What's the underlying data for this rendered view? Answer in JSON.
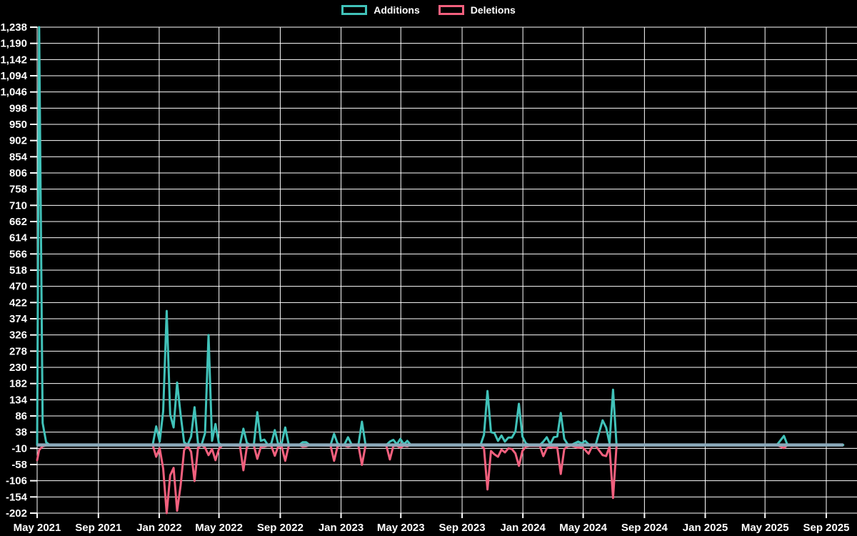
{
  "legend": {
    "items": [
      {
        "label": "Additions",
        "color": "#41c2b9"
      },
      {
        "label": "Deletions",
        "color": "#f2607e"
      }
    ]
  },
  "chart_data": {
    "type": "line",
    "title": "",
    "legend_position": "top",
    "background_color": "#000000",
    "grid": true,
    "grid_color": "#ffffff",
    "text_color": "#ffffff",
    "zero_baseline_color": "#8ba9ba",
    "ylim": [
      -202,
      1238
    ],
    "y_tick_step": 48,
    "y_ticks": [
      1238,
      1190,
      1142,
      1094,
      1046,
      998,
      950,
      902,
      854,
      806,
      758,
      710,
      662,
      614,
      566,
      518,
      470,
      422,
      374,
      326,
      278,
      230,
      182,
      134,
      86,
      38,
      -10,
      -58,
      -106,
      -154,
      -202
    ],
    "x_ticks": [
      {
        "label": "May 2021",
        "date": "2021-05-01"
      },
      {
        "label": "Sep 2021",
        "date": "2021-09-01"
      },
      {
        "label": "Jan 2022",
        "date": "2022-01-01"
      },
      {
        "label": "May 2022",
        "date": "2022-05-01"
      },
      {
        "label": "Sep 2022",
        "date": "2022-09-01"
      },
      {
        "label": "Jan 2023",
        "date": "2023-01-01"
      },
      {
        "label": "May 2023",
        "date": "2023-05-01"
      },
      {
        "label": "Sep 2023",
        "date": "2023-09-01"
      },
      {
        "label": "Jan 2024",
        "date": "2024-01-01"
      },
      {
        "label": "May 2024",
        "date": "2024-05-01"
      },
      {
        "label": "Sep 2024",
        "date": "2024-09-01"
      },
      {
        "label": "Jan 2025",
        "date": "2025-01-01"
      },
      {
        "label": "May 2025",
        "date": "2025-05-01"
      },
      {
        "label": "Sep 2025",
        "date": "2025-09-01"
      }
    ],
    "x_range": [
      "2021-05-01",
      "2025-10-05"
    ],
    "series": [
      {
        "name": "Additions",
        "color": "#41c2b9"
      },
      {
        "name": "Deletions",
        "color": "#f2607e"
      }
    ],
    "dates": [
      "2021-05-01",
      "2021-05-05",
      "2021-05-12",
      "2021-05-19",
      "2021-05-26",
      "2021-12-19",
      "2021-12-26",
      "2022-01-02",
      "2022-01-09",
      "2022-01-16",
      "2022-01-23",
      "2022-01-30",
      "2022-02-06",
      "2022-02-13",
      "2022-02-20",
      "2022-02-27",
      "2022-03-06",
      "2022-03-13",
      "2022-03-20",
      "2022-03-27",
      "2022-04-03",
      "2022-04-10",
      "2022-04-17",
      "2022-04-24",
      "2022-05-01",
      "2022-05-08",
      "2022-06-12",
      "2022-06-19",
      "2022-06-26",
      "2022-07-03",
      "2022-07-10",
      "2022-07-17",
      "2022-07-24",
      "2022-07-31",
      "2022-08-07",
      "2022-08-14",
      "2022-08-21",
      "2022-08-28",
      "2022-09-04",
      "2022-09-11",
      "2022-09-18",
      "2022-09-25",
      "2022-10-09",
      "2022-10-16",
      "2022-10-23",
      "2022-10-30",
      "2022-12-11",
      "2022-12-18",
      "2022-12-25",
      "2023-01-01",
      "2023-01-08",
      "2023-01-15",
      "2023-01-22",
      "2023-01-29",
      "2023-02-05",
      "2023-02-12",
      "2023-02-19",
      "2023-02-26",
      "2023-04-02",
      "2023-04-09",
      "2023-04-16",
      "2023-04-23",
      "2023-04-30",
      "2023-05-07",
      "2023-05-14",
      "2023-05-21",
      "2023-10-08",
      "2023-10-15",
      "2023-10-22",
      "2023-10-29",
      "2023-11-05",
      "2023-11-12",
      "2023-11-19",
      "2023-11-26",
      "2023-12-03",
      "2023-12-10",
      "2023-12-17",
      "2023-12-24",
      "2023-12-31",
      "2024-01-07",
      "2024-01-14",
      "2024-02-04",
      "2024-02-11",
      "2024-02-18",
      "2024-02-25",
      "2024-03-03",
      "2024-03-10",
      "2024-03-17",
      "2024-03-24",
      "2024-03-31",
      "2024-04-07",
      "2024-04-21",
      "2024-04-28",
      "2024-05-05",
      "2024-05-12",
      "2024-05-19",
      "2024-05-26",
      "2024-06-09",
      "2024-06-16",
      "2024-06-23",
      "2024-06-30",
      "2024-07-07",
      "2024-07-14",
      "2025-05-25",
      "2025-06-08",
      "2025-06-15",
      "2025-10-05"
    ],
    "additions": [
      0,
      1238,
      65,
      8,
      0,
      0,
      55,
      10,
      100,
      397,
      90,
      52,
      185,
      90,
      8,
      0,
      25,
      112,
      4,
      0,
      35,
      326,
      12,
      62,
      4,
      0,
      0,
      48,
      6,
      0,
      2,
      97,
      12,
      16,
      0,
      4,
      44,
      2,
      6,
      52,
      0,
      0,
      0,
      8,
      8,
      0,
      0,
      33,
      4,
      0,
      2,
      23,
      2,
      0,
      2,
      69,
      2,
      0,
      0,
      10,
      15,
      2,
      18,
      2,
      12,
      0,
      0,
      30,
      160,
      38,
      35,
      12,
      28,
      10,
      22,
      22,
      40,
      122,
      25,
      5,
      0,
      0,
      10,
      23,
      2,
      23,
      25,
      95,
      18,
      2,
      0,
      10,
      5,
      12,
      2,
      0,
      0,
      73,
      52,
      5,
      164,
      0,
      0,
      0,
      27,
      0,
      0
    ],
    "deletions": [
      -45,
      -15,
      -4,
      -1,
      0,
      0,
      -35,
      -10,
      -70,
      -202,
      -90,
      -68,
      -195,
      -120,
      -15,
      -2,
      -20,
      -107,
      -8,
      0,
      -8,
      -30,
      -12,
      -45,
      -12,
      0,
      -2,
      -75,
      -6,
      0,
      -2,
      -41,
      -6,
      -5,
      -2,
      -3,
      -32,
      -4,
      -6,
      -47,
      -2,
      0,
      0,
      -5,
      -4,
      0,
      -2,
      -47,
      -4,
      -2,
      -2,
      -5,
      -2,
      0,
      -3,
      -59,
      -3,
      0,
      -2,
      -43,
      -3,
      -2,
      -8,
      -2,
      -4,
      0,
      0,
      -10,
      -132,
      -18,
      -28,
      -35,
      -14,
      -22,
      -10,
      -12,
      -25,
      -62,
      -18,
      -5,
      -3,
      -3,
      -33,
      -10,
      -5,
      -8,
      -8,
      -86,
      -12,
      -4,
      -2,
      -8,
      -5,
      -15,
      -26,
      -4,
      -2,
      -30,
      -33,
      -5,
      -157,
      -2,
      0,
      0,
      -9,
      0,
      0
    ]
  }
}
